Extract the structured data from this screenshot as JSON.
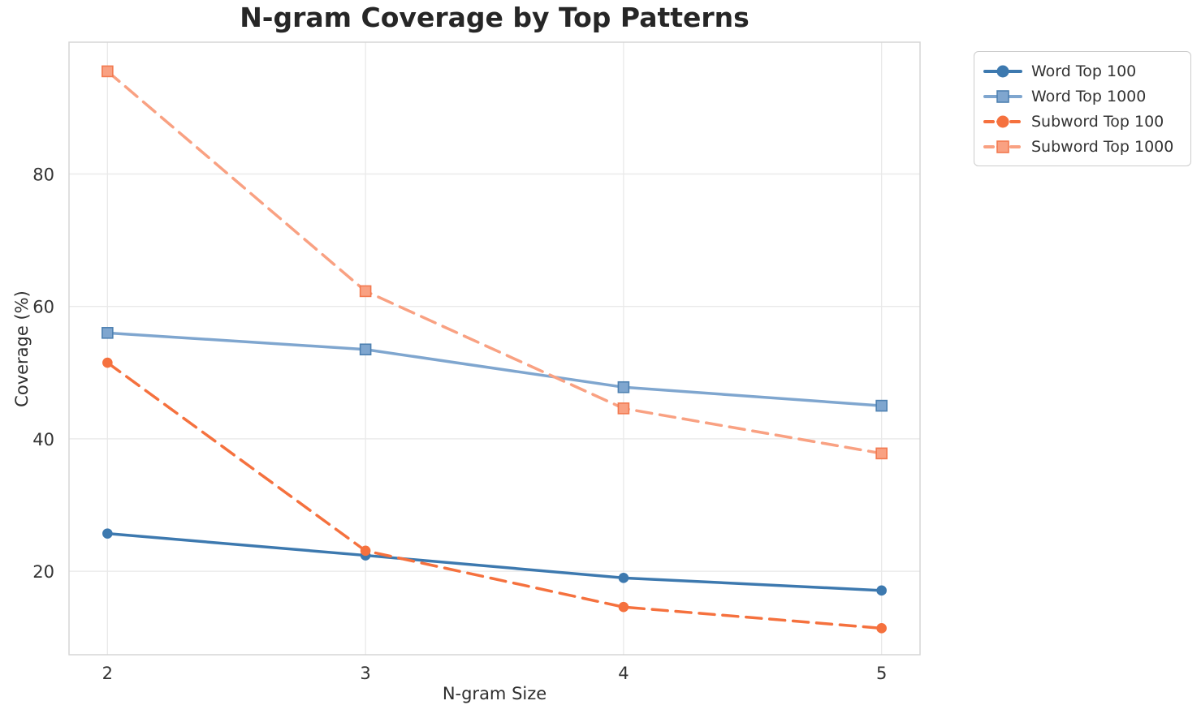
{
  "chart_data": {
    "type": "line",
    "title": "N-gram Coverage by Top Patterns",
    "xlabel": "N-gram Size",
    "ylabel": "Coverage (%)",
    "x": [
      2,
      3,
      4,
      5
    ],
    "xticks": [
      "2",
      "3",
      "4",
      "5"
    ],
    "yticks": [
      "20",
      "40",
      "60",
      "80"
    ],
    "ytick_values": [
      20,
      40,
      60,
      80
    ],
    "xlim": [
      1.851,
      5.149
    ],
    "ylim": [
      7.4,
      99.9
    ],
    "grid": true,
    "legend_position": "outside-top-right",
    "series": [
      {
        "name": "Word Top 100",
        "values": [
          25.7,
          22.4,
          19.0,
          17.1
        ],
        "color": "#3D79AF",
        "marker": "circle",
        "marker_edge": "#3D79AF",
        "line_style": "solid"
      },
      {
        "name": "Word Top 1000",
        "values": [
          56.0,
          53.5,
          47.8,
          45.0
        ],
        "color": "#7FA6CF",
        "marker": "square",
        "marker_edge": "#4E81B1",
        "line_style": "solid"
      },
      {
        "name": "Subword Top 100",
        "values": [
          51.5,
          23.1,
          14.6,
          11.4
        ],
        "color": "#F5713E",
        "marker": "circle",
        "marker_edge": "#F5713E",
        "line_style": "dashed"
      },
      {
        "name": "Subword Top 1000",
        "values": [
          95.5,
          62.3,
          44.6,
          37.8
        ],
        "color": "#F9A182",
        "marker": "square",
        "marker_edge": "#F2794F",
        "line_style": "dashed"
      }
    ]
  },
  "style": {
    "grid_color": "#e9e9e9",
    "spine_color": "#d5d5d5",
    "background": "#ffffff"
  }
}
